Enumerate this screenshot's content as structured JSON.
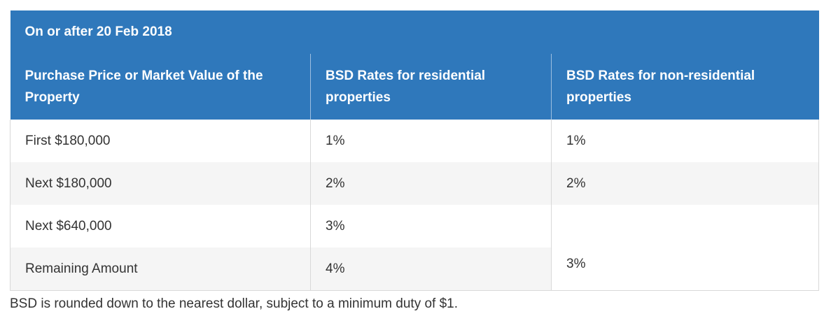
{
  "table": {
    "caption": "On or after 20 Feb 2018",
    "headers": [
      "Purchase Price or Market Value of the Property",
      "BSD Rates for residential properties",
      "BSD Rates for non-residential properties"
    ],
    "rows": [
      {
        "amount": "First $180,000",
        "residential": "1%",
        "non_residential": "1%"
      },
      {
        "amount": "Next $180,000",
        "residential": "2%",
        "non_residential": "2%"
      },
      {
        "amount": "Next $640,000",
        "residential": "3%",
        "non_residential": "3%"
      },
      {
        "amount": "Remaining Amount",
        "residential": "4%",
        "non_residential": "3%"
      }
    ],
    "header_color": "#2f78bb",
    "stripe_color": "#f5f5f5"
  },
  "footnote": "BSD is rounded down to the nearest dollar, subject to a minimum duty of $1."
}
